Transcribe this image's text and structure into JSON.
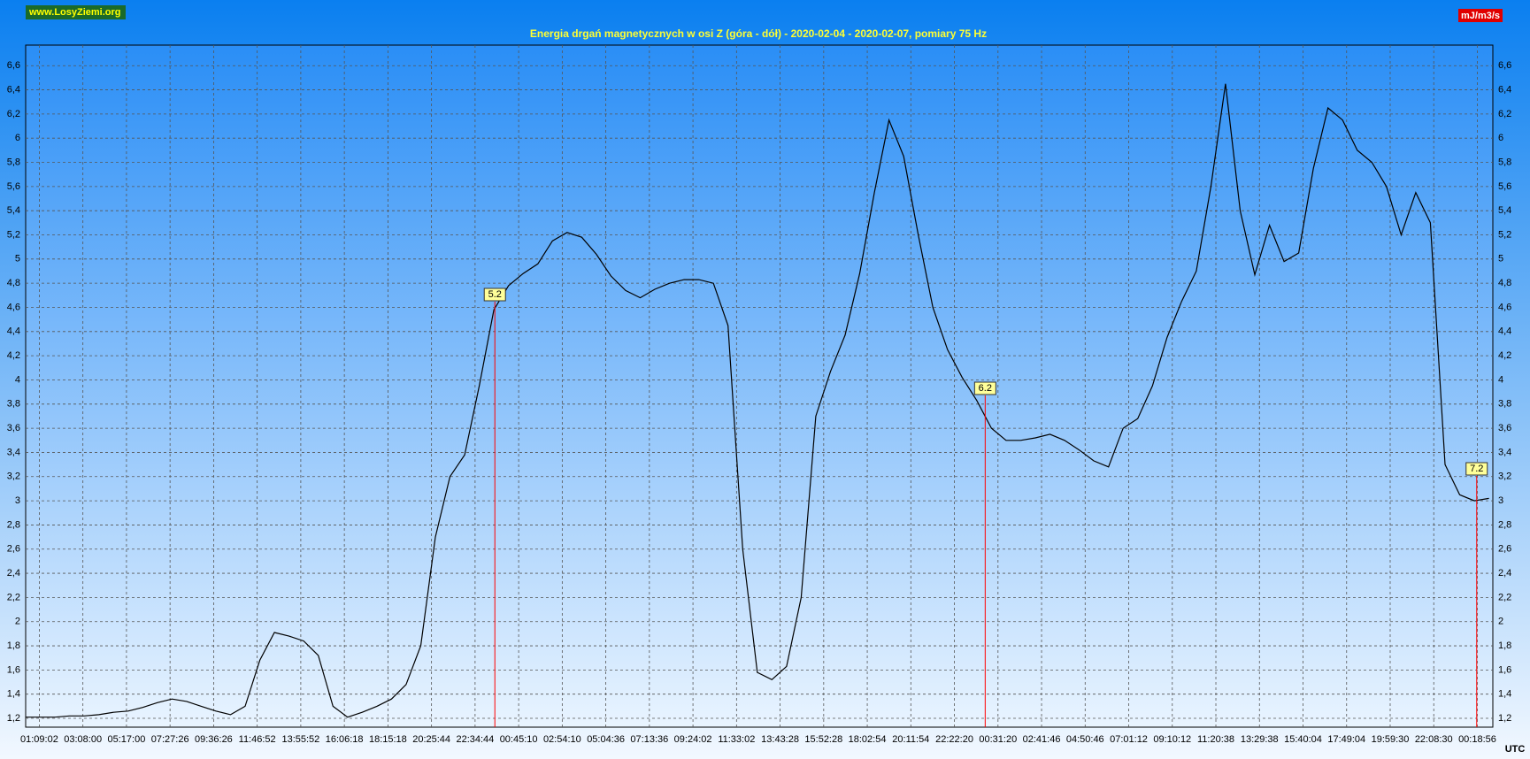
{
  "chart_data": {
    "type": "line",
    "site": "www.LosyZiemi.org",
    "title": "Energia drgań magnetycznych w osi Z (góra - dół) - 2020-02-04 - 2020-02-07, pomiary 75 Hz",
    "unit": "mJ/m3/s",
    "x_label": "UTC",
    "color": "#000000",
    "marker_color": "#ff0000",
    "grid": true,
    "ylim": [
      1.127,
      6.77
    ],
    "yticks": [
      {
        "value": 1.2,
        "label": "1,2"
      },
      {
        "value": 1.4,
        "label": "1,4"
      },
      {
        "value": 1.6,
        "label": "1,6"
      },
      {
        "value": 1.8,
        "label": "1,8"
      },
      2,
      {
        "value": 2.2,
        "label": "2,2"
      },
      {
        "value": 2.4,
        "label": "2,4"
      },
      {
        "value": 2.6,
        "label": "2,6"
      },
      {
        "value": 2.8,
        "label": "2,8"
      },
      3,
      {
        "value": 3.2,
        "label": "3,2"
      },
      {
        "value": 3.4,
        "label": "3,4"
      },
      {
        "value": 3.6,
        "label": "3,6"
      },
      {
        "value": 3.8,
        "label": "3,8"
      },
      4,
      {
        "value": 4.2,
        "label": "4,2"
      },
      {
        "value": 4.4,
        "label": "4,4"
      },
      {
        "value": 4.6,
        "label": "4,6"
      },
      {
        "value": 4.8,
        "label": "4,8"
      },
      5,
      {
        "value": 5.2,
        "label": "5,2"
      },
      {
        "value": 5.4,
        "label": "5,4"
      },
      {
        "value": 5.6,
        "label": "5,6"
      },
      {
        "value": 5.8,
        "label": "5,8"
      },
      6,
      {
        "value": 6.2,
        "label": "6,2"
      },
      {
        "value": 6.4,
        "label": "6,4"
      },
      {
        "value": 6.6,
        "label": "6,6"
      }
    ],
    "xtick_labels": [
      "01:09:02",
      "03:08:00",
      "05:17:00",
      "07:27:26",
      "09:36:26",
      "11:46:52",
      "13:55:52",
      "16:06:18",
      "18:15:18",
      "20:25:44",
      "22:34:44",
      "00:45:10",
      "02:54:10",
      "05:04:36",
      "07:13:36",
      "09:24:02",
      "11:33:02",
      "13:43:28",
      "15:52:28",
      "18:02:54",
      "20:11:54",
      "22:22:20",
      "00:31:20",
      "02:41:46",
      "04:50:46",
      "07:01:12",
      "09:10:12",
      "11:20:38",
      "13:29:38",
      "15:40:04",
      "17:49:04",
      "19:59:30",
      "22:08:30",
      "00:18:56"
    ],
    "markers": [
      "5.2",
      "6.2",
      "7.2"
    ],
    "values": [
      1.21,
      1.21,
      1.21,
      1.22,
      1.22,
      1.23,
      1.25,
      1.26,
      1.29,
      1.33,
      1.36,
      1.34,
      1.3,
      1.26,
      1.23,
      1.3,
      1.68,
      1.91,
      1.88,
      1.84,
      1.72,
      1.3,
      1.21,
      1.25,
      1.3,
      1.36,
      1.48,
      1.8,
      2.7,
      3.2,
      3.38,
      3.95,
      4.58,
      4.78,
      4.88,
      4.96,
      5.15,
      5.22,
      5.18,
      5.04,
      4.86,
      4.74,
      4.68,
      4.75,
      4.8,
      4.83,
      4.83,
      4.8,
      4.45,
      2.6,
      1.58,
      1.52,
      1.63,
      2.2,
      3.7,
      4.07,
      4.37,
      4.88,
      5.55,
      6.15,
      5.85,
      5.2,
      4.6,
      4.25,
      4.02,
      3.83,
      3.6,
      3.5,
      3.5,
      3.52,
      3.55,
      3.5,
      3.42,
      3.33,
      3.28,
      3.6,
      3.68,
      3.95,
      4.35,
      4.65,
      4.9,
      5.6,
      6.45,
      5.4,
      4.87,
      5.28,
      4.98,
      5.05,
      5.75,
      6.25,
      6.15,
      5.9,
      5.8,
      5.6,
      5.2,
      5.55,
      5.3,
      3.3,
      3.05,
      3.0,
      3.02
    ]
  }
}
